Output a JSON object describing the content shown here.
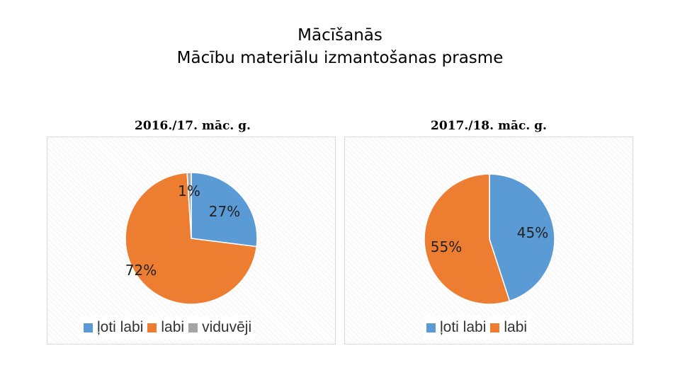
{
  "title": {
    "line1": "Mācīšanās",
    "line2": "Mācību materiālu izmantošanas prasme"
  },
  "chart_data": [
    {
      "type": "pie",
      "title": "2016./17. māc. g.",
      "series": [
        {
          "name": "ļoti labi",
          "value": 27,
          "label": "27%",
          "color": "#5b9bd5"
        },
        {
          "name": "labi",
          "value": 72,
          "label": "72%",
          "color": "#ed7d31"
        },
        {
          "name": "viduvēji",
          "value": 1,
          "label": "1%",
          "color": "#a5a5a5"
        }
      ],
      "legend": "bottom"
    },
    {
      "type": "pie",
      "title": "2017./18. māc. g.",
      "series": [
        {
          "name": "ļoti labi",
          "value": 45,
          "label": "45%",
          "color": "#5b9bd5"
        },
        {
          "name": "labi",
          "value": 55,
          "label": "55%",
          "color": "#ed7d31"
        }
      ],
      "legend": "bottom"
    }
  ]
}
